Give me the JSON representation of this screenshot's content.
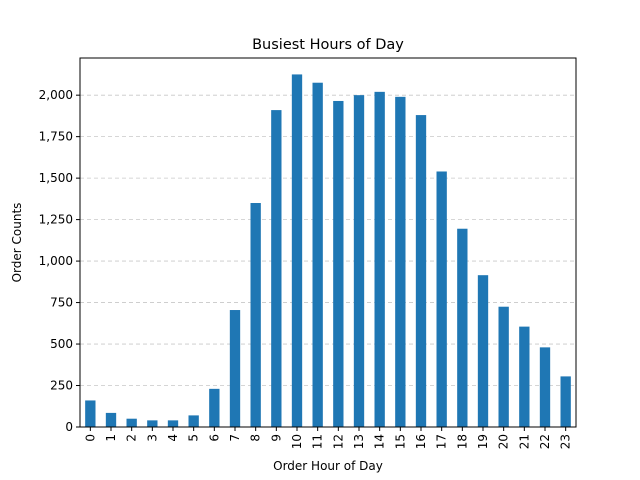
{
  "chart_data": {
    "type": "bar",
    "title": "Busiest Hours of Day",
    "xlabel": "Order Hour of Day",
    "ylabel": "Order Counts",
    "categories": [
      "0",
      "1",
      "2",
      "3",
      "4",
      "5",
      "6",
      "7",
      "8",
      "9",
      "10",
      "11",
      "12",
      "13",
      "14",
      "15",
      "16",
      "17",
      "18",
      "19",
      "20",
      "21",
      "22",
      "23"
    ],
    "values": [
      160,
      85,
      50,
      40,
      40,
      70,
      230,
      705,
      1350,
      1910,
      2125,
      2075,
      1965,
      2000,
      2020,
      1990,
      1880,
      1540,
      1195,
      915,
      725,
      605,
      480,
      305
    ],
    "ylim": [
      0,
      2224
    ],
    "yticks": [
      0,
      250,
      500,
      750,
      1000,
      1250,
      1500,
      1750,
      2000
    ],
    "ytick_labels": [
      "0",
      "250",
      "500",
      "750",
      "1,000",
      "1,250",
      "1,500",
      "1,750",
      "2,000"
    ],
    "grid": "y-dashed",
    "bar_color": "#1f77b4",
    "grid_color": "#c8c8c8"
  }
}
